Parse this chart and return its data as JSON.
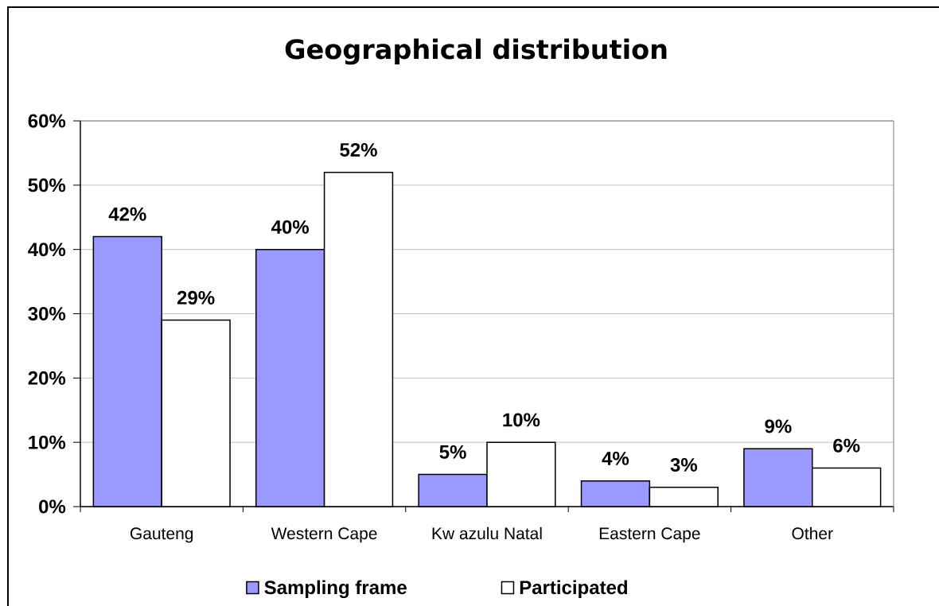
{
  "chart_data": {
    "type": "bar",
    "title": "Geographical distribution",
    "categories": [
      "Gauteng",
      "Western Cape",
      "Kw azulu Natal",
      "Eastern Cape",
      "Other"
    ],
    "series": [
      {
        "name": "Sampling frame",
        "color": "#9999ff",
        "values": [
          42,
          40,
          5,
          4,
          9
        ],
        "value_labels": [
          "42%",
          "40%",
          "5%",
          "4%",
          "9%"
        ]
      },
      {
        "name": "Participated",
        "color": "#ffffff",
        "values": [
          29,
          52,
          10,
          3,
          6
        ],
        "value_labels": [
          "29%",
          "52%",
          "10%",
          "3%",
          "6%"
        ]
      }
    ],
    "ylim": [
      0,
      60
    ],
    "yticks": [
      {
        "value": 0,
        "label": "0%"
      },
      {
        "value": 10,
        "label": "10%"
      },
      {
        "value": 20,
        "label": "20%"
      },
      {
        "value": 30,
        "label": "30%"
      },
      {
        "value": 40,
        "label": "40%"
      },
      {
        "value": 50,
        "label": "50%"
      },
      {
        "value": 60,
        "label": "60%"
      }
    ],
    "grid": "y",
    "legend": "bottom"
  }
}
